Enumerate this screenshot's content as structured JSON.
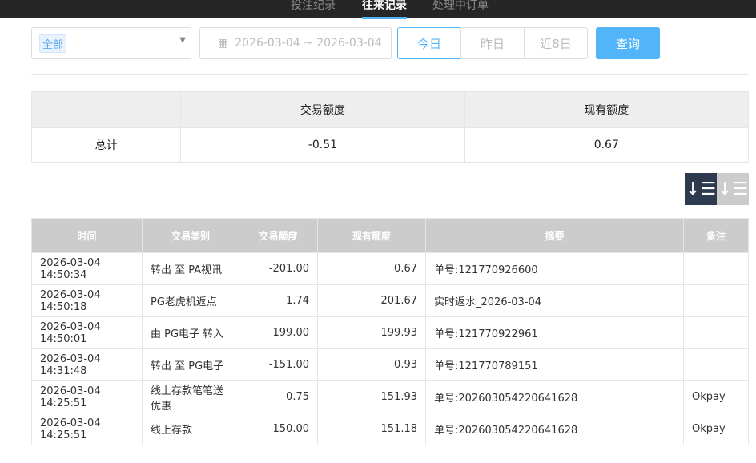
{
  "tabs": [
    "投注纪录",
    "往来记录",
    "处理中订单"
  ],
  "filter": {
    "category": "全部",
    "date_range": "2026-03-04 ~ 2026-03-04",
    "today": "今日",
    "yesterday": "昨日",
    "last8": "近8日",
    "query": "查询"
  },
  "summary": {
    "headers": [
      "",
      "交易额度",
      "现有额度"
    ],
    "row": [
      "总计",
      "-0.51",
      "0.67"
    ]
  },
  "table": {
    "headers": [
      "时间",
      "交易类别",
      "交易额度",
      "现有额度",
      "摘要",
      "备注"
    ],
    "rows": [
      [
        "2026-03-04 14:50:34",
        "转出 至 PA视讯",
        "-201.00",
        "0.67",
        "单号:121770926600",
        ""
      ],
      [
        "2026-03-04 14:50:18",
        "PG老虎机返点",
        "1.74",
        "201.67",
        "实时返水_2026-03-04",
        ""
      ],
      [
        "2026-03-04 14:50:01",
        "由 PG电子 转入",
        "199.00",
        "199.93",
        "单号:121770922961",
        ""
      ],
      [
        "2026-03-04 14:31:48",
        "转出 至 PG电子",
        "-151.00",
        "0.93",
        "单号:121770789151",
        ""
      ],
      [
        "2026-03-04 14:25:51",
        "线上存款笔笔送优惠",
        "0.75",
        "151.93",
        "单号:202603054220641628",
        "Okpay"
      ],
      [
        "2026-03-04 14:25:51",
        "线上存款",
        "150.00",
        "151.18",
        "单号:202603054220641628",
        "Okpay"
      ]
    ]
  }
}
